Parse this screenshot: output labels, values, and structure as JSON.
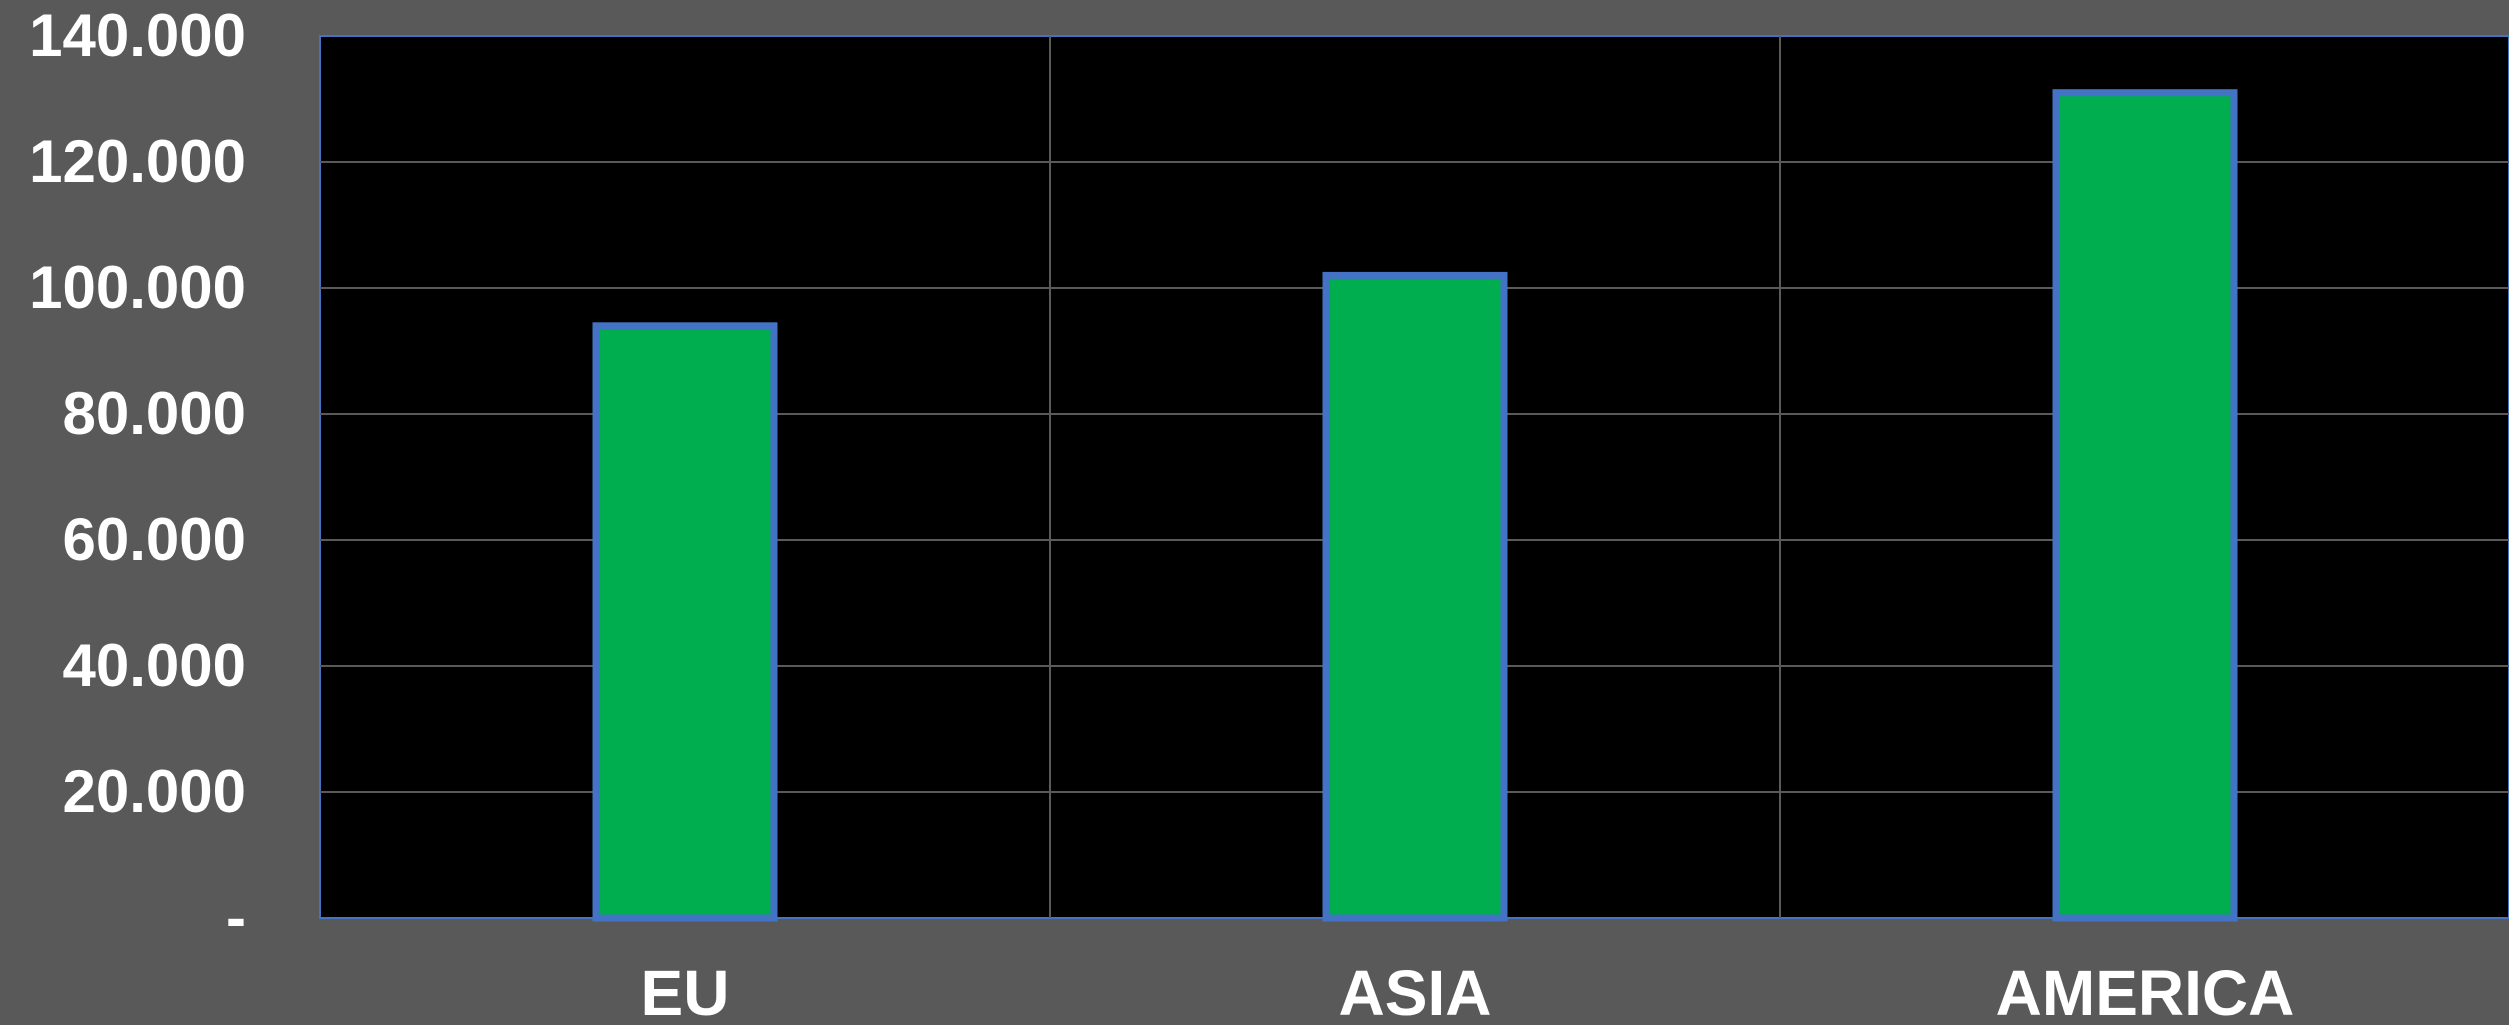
{
  "chart_data": {
    "type": "bar",
    "title": "",
    "xlabel": "",
    "ylabel": "",
    "categories": [
      "EU",
      "ASIA",
      "AMERICA"
    ],
    "values": [
      94000,
      102000,
      131000
    ],
    "ylim": [
      0,
      140000
    ],
    "yticks": [
      0,
      20000,
      40000,
      60000,
      80000,
      100000,
      120000,
      140000
    ],
    "ytick_labels": [
      "-",
      "20.000",
      "40.000",
      "60.000",
      "80.000",
      "100.000",
      "120.000",
      "140.000"
    ],
    "grid": true,
    "legend": "none",
    "colors": {
      "background": "#595959",
      "plot_area": "#000000",
      "bar_fill": "#00ad4f",
      "bar_edge": "#4472c4",
      "grid": "#5a5a5a",
      "text": "#ffffff"
    }
  }
}
